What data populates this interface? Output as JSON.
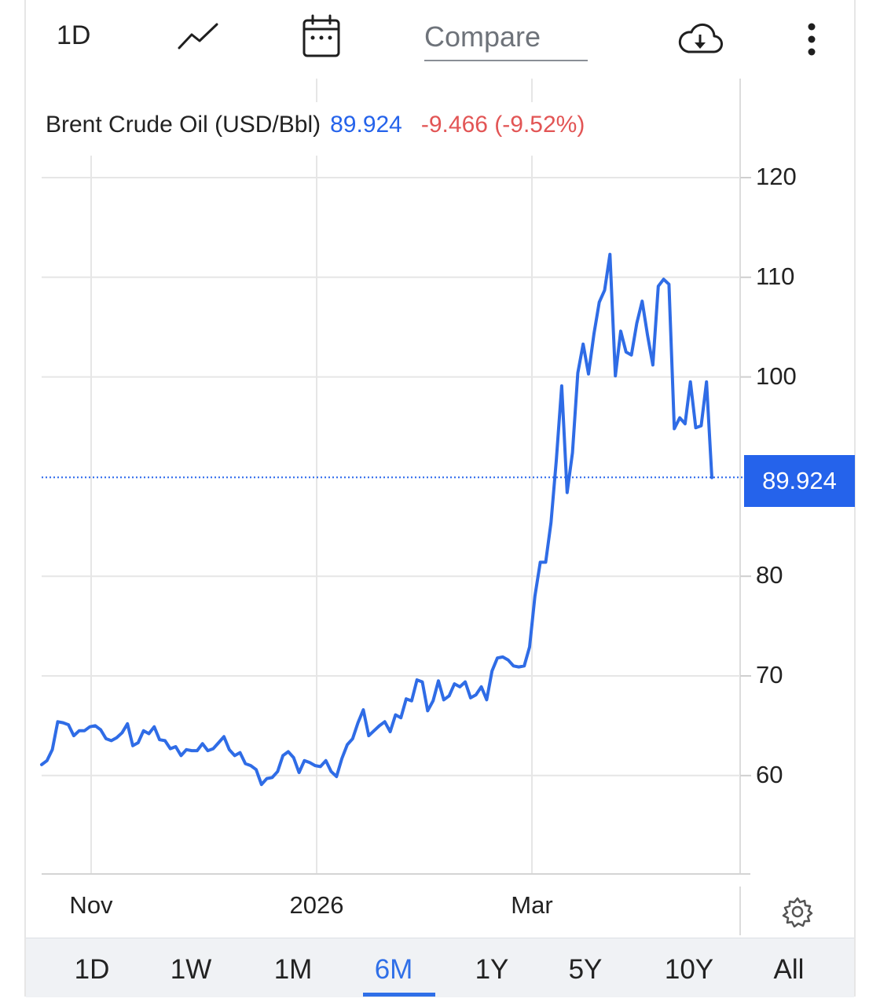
{
  "toolbar": {
    "interval_label": "1D",
    "compare_placeholder": "Compare",
    "icons": [
      "line-chart-icon",
      "calendar-icon",
      "cloud-download-icon",
      "more-vertical-icon"
    ]
  },
  "legend": {
    "name": "Brent Crude Oil (USD/Bbl)",
    "price": "89.924",
    "change": "-9.466 (-9.52%)"
  },
  "price_tag": "89.924",
  "range_buttons": [
    "1D",
    "1W",
    "1M",
    "6M",
    "1Y",
    "5Y",
    "10Y",
    "All"
  ],
  "active_range": "6M",
  "colors": {
    "line": "#2f6ce6",
    "accent": "#2563eb",
    "negative": "#e25555",
    "grid": "#e6e6e6"
  },
  "chart_data": {
    "type": "line",
    "title": "Brent Crude Oil (USD/Bbl)",
    "xlabel": "",
    "ylabel": "",
    "ylim": [
      50,
      122.5
    ],
    "y_ticks": [
      60,
      70,
      80,
      100,
      110,
      120
    ],
    "x_ticks": [
      "Nov",
      "2026",
      "Mar"
    ],
    "last_value": 89.924,
    "grid": true,
    "series": [
      {
        "values": [
          61.1,
          61.5,
          62.6,
          65.4,
          65.3,
          65.1,
          64.0,
          64.5,
          64.5,
          64.9,
          65.0,
          64.6,
          63.7,
          63.5,
          63.8,
          64.3,
          65.2,
          63.0,
          63.3,
          64.5,
          64.2,
          64.9,
          63.6,
          63.5,
          62.7,
          62.9,
          62.0,
          62.6,
          62.5,
          62.5,
          63.2,
          62.5,
          62.7,
          63.3,
          63.9,
          62.6,
          62.0,
          62.3,
          61.2,
          61.0,
          60.6,
          59.1,
          59.7,
          59.8,
          60.4,
          62.0,
          62.4,
          61.8,
          60.3,
          61.5,
          61.3,
          61.0,
          60.9,
          61.5,
          60.4,
          59.9,
          61.7,
          63.1,
          63.7,
          65.3,
          66.6,
          64.0,
          64.5,
          65.0,
          65.4,
          64.4,
          66.1,
          65.8,
          67.7,
          67.5,
          69.6,
          69.4,
          66.5,
          67.5,
          69.5,
          67.6,
          68.0,
          69.2,
          68.9,
          69.4,
          67.8,
          68.1,
          68.9,
          67.6,
          70.5,
          71.8,
          71.9,
          71.6,
          71.0,
          70.9,
          71.0,
          72.9,
          78.0,
          81.4,
          81.4,
          85.4,
          91.7,
          99.1,
          88.4,
          92.4,
          100.4,
          103.3,
          100.3,
          104.3,
          107.5,
          108.7,
          112.3,
          100.1,
          104.6,
          102.5,
          102.2,
          105.4,
          107.6,
          104.2,
          101.2,
          109.1,
          109.8,
          109.3,
          94.8,
          95.9,
          95.3,
          99.5,
          94.9,
          95.1,
          99.5,
          89.9
        ]
      }
    ]
  }
}
